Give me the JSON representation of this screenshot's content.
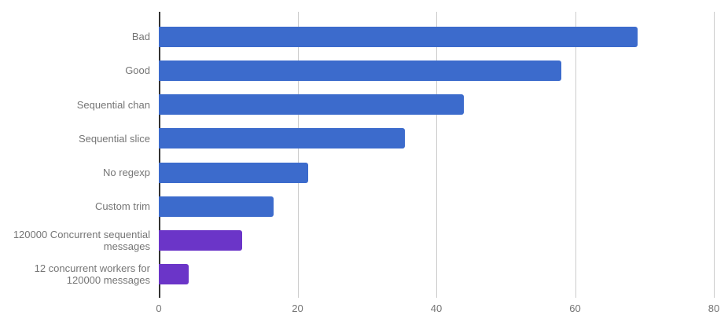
{
  "page": {
    "background_color": "#ffffff"
  },
  "chart_data": {
    "type": "bar",
    "orientation": "horizontal",
    "title": "",
    "xlabel": "",
    "ylabel": "",
    "categories": [
      "Bad",
      "Good",
      "Sequential chan",
      "Sequential slice",
      "No regexp",
      "Custom trim",
      "120000 Concurrent sequential messages",
      "12 concurrent workers for 120000 messages"
    ],
    "values": [
      69,
      58,
      44,
      35.5,
      21.5,
      16.5,
      12,
      4.3
    ],
    "bar_colors": [
      "#3C6BCC",
      "#3C6BCC",
      "#3C6BCC",
      "#3C6BCC",
      "#3C6BCC",
      "#3C6BCC",
      "#6B35C8",
      "#6B35C8"
    ],
    "xlim": [
      0,
      80
    ],
    "x_ticks": [
      0,
      20,
      40,
      60,
      80
    ],
    "grid": true,
    "legend": "none",
    "colors": {
      "bar_blue": "#3C6BCC",
      "bar_purple": "#6B35C8",
      "axis_line": "#333333",
      "gridline": "#cccccc",
      "text": "#757575"
    }
  }
}
